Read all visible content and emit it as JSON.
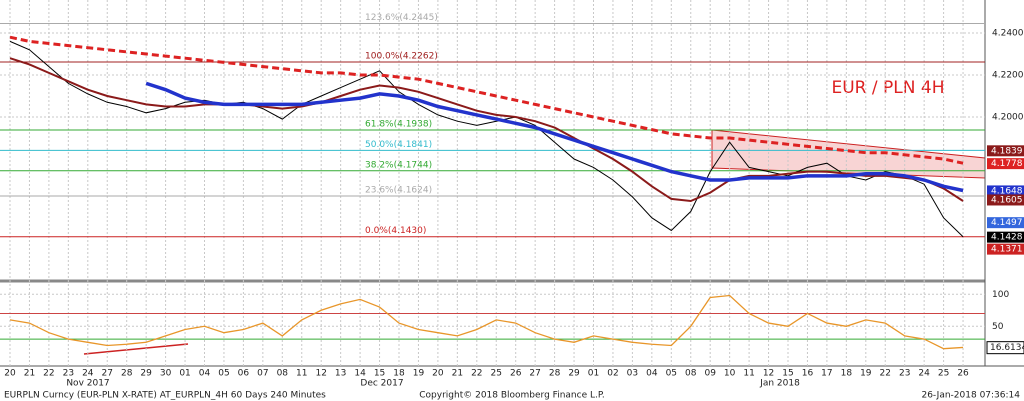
{
  "chart_data": {
    "type": "line",
    "title": "EUR / PLN 4H",
    "categories": [
      "20",
      "21",
      "22",
      "23",
      "24",
      "27",
      "28",
      "29",
      "30",
      "01",
      "04",
      "05",
      "06",
      "07",
      "08",
      "11",
      "12",
      "13",
      "14",
      "15",
      "18",
      "19",
      "20",
      "21",
      "22",
      "25",
      "26",
      "27",
      "28",
      "29",
      "01",
      "02",
      "03",
      "04",
      "05",
      "08",
      "09",
      "10",
      "11",
      "12",
      "15",
      "16",
      "17",
      "18",
      "19",
      "22",
      "23",
      "24",
      "25",
      "26"
    ],
    "months": [
      "Nov 2017",
      "Dec 2017",
      "Jan 2018"
    ],
    "ylim": [
      4.1224,
      4.2557
    ],
    "yticks": [
      {
        "value": 4.2,
        "label": "4.2000"
      },
      {
        "value": 4.22,
        "label": "4.2200"
      },
      {
        "value": 4.24,
        "label": "4.2400"
      }
    ],
    "grid": true,
    "series": [
      {
        "color": "#000000",
        "width": 1,
        "values": [
          4.236,
          4.232,
          4.224,
          4.216,
          4.211,
          4.207,
          4.205,
          4.202,
          4.204,
          4.207,
          4.208,
          4.206,
          4.207,
          4.204,
          4.199,
          4.206,
          4.21,
          4.214,
          4.218,
          4.222,
          4.212,
          4.206,
          4.201,
          4.198,
          4.196,
          4.198,
          4.2,
          4.196,
          4.188,
          4.18,
          4.176,
          4.17,
          4.162,
          4.152,
          4.146,
          4.155,
          4.174,
          4.188,
          4.176,
          4.174,
          4.172,
          4.176,
          4.178,
          4.172,
          4.17,
          4.174,
          4.172,
          4.168,
          4.152,
          4.143
        ]
      },
      {
        "color": "#8b1a1a",
        "width": 2,
        "values": [
          4.228,
          4.225,
          4.221,
          4.217,
          4.213,
          4.21,
          4.208,
          4.206,
          4.205,
          4.205,
          4.206,
          4.206,
          4.206,
          4.205,
          4.204,
          4.205,
          4.207,
          4.21,
          4.213,
          4.215,
          4.214,
          4.212,
          4.209,
          4.206,
          4.203,
          4.201,
          4.2,
          4.198,
          4.195,
          4.19,
          4.185,
          4.18,
          4.174,
          4.167,
          4.161,
          4.16,
          4.164,
          4.17,
          4.172,
          4.172,
          4.173,
          4.174,
          4.174,
          4.173,
          4.172,
          4.172,
          4.171,
          4.17,
          4.166,
          4.16
        ]
      },
      {
        "color": "#2233cc",
        "width": 3.5,
        "values": [
          null,
          null,
          null,
          null,
          null,
          null,
          null,
          4.216,
          4.213,
          4.209,
          4.207,
          4.206,
          4.206,
          4.206,
          4.206,
          4.206,
          4.207,
          4.208,
          4.209,
          4.211,
          4.21,
          4.208,
          4.205,
          4.203,
          4.201,
          4.199,
          4.197,
          4.195,
          4.192,
          4.189,
          4.186,
          4.183,
          4.18,
          4.177,
          4.174,
          4.172,
          4.17,
          4.17,
          4.171,
          4.171,
          4.171,
          4.172,
          4.172,
          4.172,
          4.173,
          4.173,
          4.172,
          4.17,
          4.167,
          4.165
        ]
      },
      {
        "color": "#dd2222",
        "width": 3,
        "dashed": true,
        "values": [
          4.238,
          4.236,
          4.235,
          4.234,
          4.233,
          4.232,
          4.231,
          4.23,
          4.229,
          4.228,
          4.227,
          4.226,
          4.225,
          4.224,
          4.223,
          4.222,
          4.221,
          4.221,
          4.22,
          4.22,
          4.219,
          4.218,
          4.216,
          4.214,
          4.212,
          4.21,
          4.208,
          4.206,
          4.204,
          4.202,
          4.2,
          4.198,
          4.196,
          4.194,
          4.192,
          4.191,
          4.19,
          4.19,
          4.189,
          4.188,
          4.187,
          4.186,
          4.185,
          4.184,
          4.183,
          4.183,
          4.182,
          4.181,
          4.18,
          4.178
        ]
      }
    ],
    "fib_levels": [
      {
        "value": 4.2445,
        "label": "123.6%(4.2445)",
        "color": "#aaaaaa"
      },
      {
        "value": 4.2262,
        "label": "100.0%(4.2262)",
        "color": "#a02020"
      },
      {
        "value": 4.1938,
        "label": "61.8%(4.1938)",
        "color": "#33aa33"
      },
      {
        "value": 4.1841,
        "label": "50.0%(4.1841)",
        "color": "#33bbcc"
      },
      {
        "value": 4.1744,
        "label": "38.2%(4.1744)",
        "color": "#33aa33"
      },
      {
        "value": 4.1624,
        "label": "23.6%(4.1624)",
        "color": "#aaaaaa"
      },
      {
        "value": 4.143,
        "label": "0.0%(4.1430)",
        "color": "#cc2222"
      }
    ],
    "last_labels": [
      {
        "value": 4.1839,
        "label": "4.1839",
        "color": "#8b1a1a"
      },
      {
        "value": 4.1778,
        "label": "4.1778",
        "color": "#dd2222"
      },
      {
        "value": 4.1648,
        "label": "4.1648",
        "color": "#2233cc"
      },
      {
        "value": 4.1605,
        "label": "4.1605",
        "color": "#8b1a1a"
      },
      {
        "value": 4.1497,
        "label": "4.1497",
        "color": "#3366dd"
      },
      {
        "value": 4.1428,
        "label": "4.1428",
        "color": "#000000"
      },
      {
        "value": 4.1371,
        "label": "4.1371",
        "color": "#cc2222"
      }
    ],
    "lower": {
      "ylim": [
        -12,
        116
      ],
      "yticks": [
        50,
        100
      ],
      "color": "#e8962a",
      "values": [
        60,
        55,
        40,
        30,
        25,
        20,
        22,
        25,
        35,
        45,
        50,
        40,
        45,
        55,
        35,
        60,
        75,
        85,
        92,
        80,
        55,
        45,
        40,
        35,
        45,
        60,
        55,
        40,
        30,
        25,
        35,
        30,
        25,
        22,
        20,
        50,
        95,
        98,
        70,
        55,
        50,
        70,
        55,
        50,
        60,
        55,
        35,
        30,
        15,
        17
      ],
      "last": 16.6134
    },
    "footer": {
      "left": "EURPLN Curncy (EUR-PLN X-RATE) AT_EURPLN_4H 60 Days 240 Minutes",
      "center": "Copyright© 2018 Bloomberg Finance L.P.",
      "right": "26-Jan-2018 07:36:14"
    }
  }
}
